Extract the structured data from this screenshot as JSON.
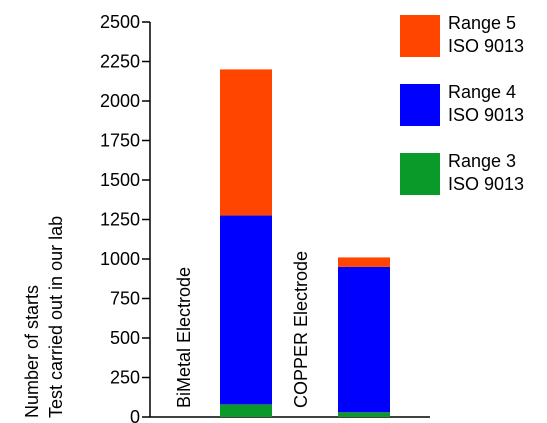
{
  "chart_data": {
    "type": "stacked-bar",
    "ylabel": [
      "Number of starts",
      "Test carried out in our lab"
    ],
    "categories": [
      "BiMetal Electrode",
      "COPPER  Electrode"
    ],
    "series": [
      {
        "name": "Range 3 ISO 9013",
        "color": "#0a9a2a",
        "values": [
          80,
          30
        ]
      },
      {
        "name": "Range 4 ISO 9013",
        "color": "#0000ff",
        "values": [
          1195,
          920
        ]
      },
      {
        "name": "Range 5 ISO 9013",
        "color": "#ff4500",
        "values": [
          925,
          60
        ]
      }
    ],
    "ylim": [
      0,
      2500
    ],
    "yticks": [
      0,
      250,
      500,
      750,
      1000,
      1250,
      1500,
      1750,
      2000,
      2250,
      2500
    ],
    "legend": "top-right"
  }
}
